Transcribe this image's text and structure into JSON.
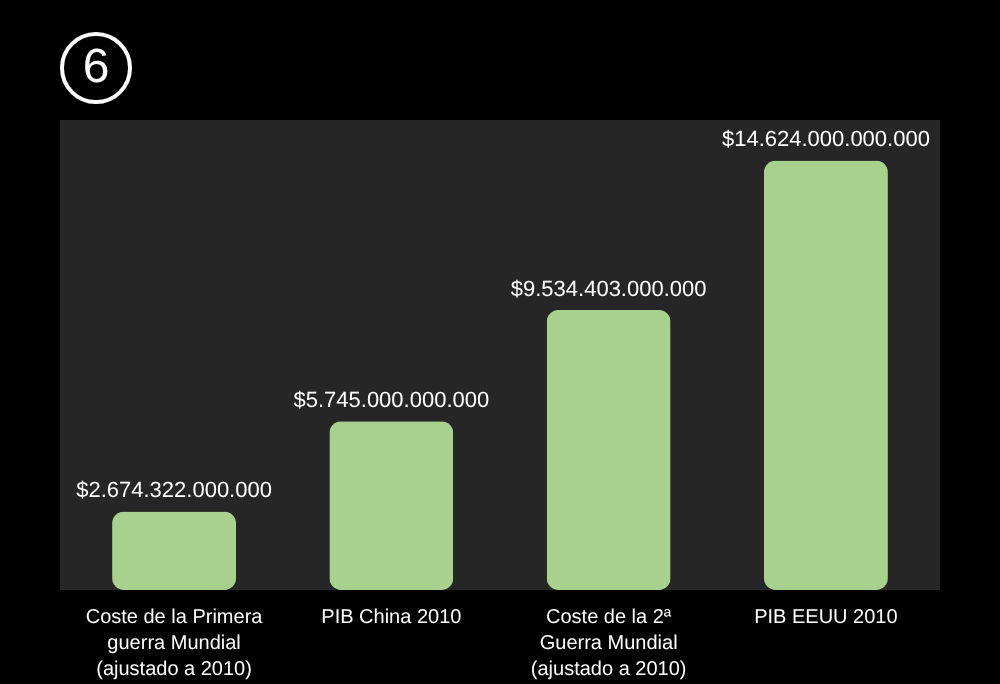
{
  "chart_data": {
    "type": "bar",
    "annotations": [
      "6"
    ],
    "categories": [
      "Coste de la Primera guerra Mundial (ajustado a 2010)",
      "PIB China 2010",
      "Coste de la 2ª Guerra Mundial (ajustado a 2010)",
      "PIB EEUU 2010"
    ],
    "values": [
      2674322000000,
      5745000000000,
      9534403000000,
      14624000000000
    ],
    "value_labels": [
      "$2.674.322.000.000",
      "$5.745.000.000.000",
      "$9.534.403.000.000",
      "$14.624.000.000.000"
    ],
    "color": "#a9d18e"
  }
}
